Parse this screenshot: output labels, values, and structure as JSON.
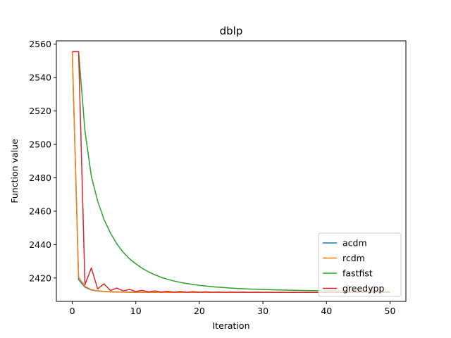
{
  "chart_data": {
    "type": "line",
    "title": "dblp",
    "xlabel": "Iteration",
    "ylabel": "Function value",
    "xlim": [
      -2.5,
      52.5
    ],
    "ylim": [
      2406,
      2562
    ],
    "xticks": [
      0,
      10,
      20,
      30,
      40,
      50
    ],
    "yticks": [
      2420,
      2440,
      2460,
      2480,
      2500,
      2520,
      2540,
      2560
    ],
    "grid": false,
    "legend_position": "lower right",
    "series": [
      {
        "name": "acdm",
        "color": "#1f77b4",
        "x": [
          0,
          1,
          2,
          3,
          4,
          5,
          6,
          7,
          8,
          9,
          10,
          11,
          12,
          13,
          14,
          15,
          16,
          17,
          18,
          19,
          20,
          21,
          22,
          23,
          24,
          25,
          26,
          27,
          28,
          29,
          30,
          31,
          32,
          33,
          34,
          35,
          36,
          37,
          38,
          39,
          40,
          41,
          42,
          43,
          44,
          45,
          46,
          47,
          48,
          49,
          50
        ],
        "y": [
          2555.5,
          2419.0,
          2414.5,
          2412.8,
          2412.2,
          2411.9,
          2411.7,
          2411.6,
          2411.55,
          2411.5,
          2411.5,
          2411.45,
          2411.45,
          2411.4,
          2411.4,
          2411.4,
          2411.4,
          2411.4,
          2411.4,
          2411.4,
          2411.4,
          2411.4,
          2411.4,
          2411.4,
          2411.4,
          2411.4,
          2411.4,
          2411.4,
          2411.4,
          2411.4,
          2411.4,
          2411.4,
          2411.4,
          2411.4,
          2411.4,
          2411.4,
          2411.4,
          2411.4,
          2411.4,
          2411.4,
          2411.4,
          2411.4,
          2411.4,
          2411.4,
          2411.4,
          2411.4,
          2411.4,
          2411.4,
          2411.4,
          2411.4,
          2411.4
        ]
      },
      {
        "name": "rcdm",
        "color": "#ff7f0e",
        "x": [
          0,
          1,
          2,
          3,
          4,
          5,
          6,
          7,
          8,
          9,
          10,
          11,
          12,
          13,
          14,
          15,
          16,
          17,
          18,
          19,
          20,
          21,
          22,
          23,
          24,
          25,
          26,
          27,
          28,
          29,
          30,
          31,
          32,
          33,
          34,
          35,
          36,
          37,
          38,
          39,
          40,
          41,
          42,
          43,
          44,
          45,
          46,
          47,
          48,
          49,
          50
        ],
        "y": [
          2555.5,
          2420.5,
          2415.0,
          2413.0,
          2412.3,
          2412.0,
          2411.8,
          2411.7,
          2411.6,
          2411.55,
          2411.5,
          2411.5,
          2411.45,
          2411.45,
          2411.4,
          2411.4,
          2411.4,
          2411.4,
          2411.4,
          2411.4,
          2411.4,
          2411.4,
          2411.4,
          2411.4,
          2411.4,
          2411.4,
          2411.4,
          2411.4,
          2411.4,
          2411.4,
          2411.4,
          2411.4,
          2411.4,
          2411.4,
          2411.4,
          2411.4,
          2411.4,
          2411.4,
          2411.4,
          2411.4,
          2411.4,
          2411.4,
          2411.4,
          2411.4,
          2411.4,
          2411.4,
          2411.4,
          2411.4,
          2411.4,
          2411.4,
          2411.4
        ]
      },
      {
        "name": "fastfist",
        "color": "#2ca02c",
        "x": [
          0,
          1,
          2,
          3,
          4,
          5,
          6,
          7,
          8,
          9,
          10,
          11,
          12,
          13,
          14,
          15,
          16,
          17,
          18,
          19,
          20,
          21,
          22,
          23,
          24,
          25,
          26,
          27,
          28,
          29,
          30,
          31,
          32,
          33,
          34,
          35,
          36,
          37,
          38,
          39,
          40,
          41,
          42,
          43,
          44,
          45,
          46,
          47,
          48,
          49,
          50
        ],
        "y": [
          2555.5,
          2555.5,
          2508,
          2481,
          2466,
          2455,
          2447,
          2440.5,
          2435.5,
          2431.5,
          2428.5,
          2425.8,
          2423.7,
          2421.9,
          2420.4,
          2419.2,
          2418.2,
          2417.4,
          2416.7,
          2416.1,
          2415.6,
          2415.2,
          2414.8,
          2414.5,
          2414.2,
          2413.95,
          2413.75,
          2413.55,
          2413.4,
          2413.25,
          2413.1,
          2413.0,
          2412.9,
          2412.8,
          2412.7,
          2412.62,
          2412.55,
          2412.48,
          2412.42,
          2412.36,
          2412.31,
          2412.26,
          2412.22,
          2412.18,
          2412.14,
          2412.1,
          2412.07,
          2412.04,
          2412.01,
          2411.98,
          2411.95
        ]
      },
      {
        "name": "greedypp",
        "color": "#d62728",
        "x": [
          0,
          1,
          2,
          3,
          4,
          5,
          6,
          7,
          8,
          9,
          10,
          11,
          12,
          13,
          14,
          15,
          16,
          17,
          18,
          19,
          20,
          21,
          22,
          23,
          24,
          25,
          26,
          27,
          28,
          29,
          30,
          31,
          32,
          33,
          34,
          35,
          36,
          37,
          38,
          39,
          40,
          41,
          42,
          43,
          44,
          45,
          46,
          47,
          48,
          49,
          50
        ],
        "y": [
          2555.5,
          2555.5,
          2416,
          2426,
          2413.5,
          2416.5,
          2412.5,
          2414,
          2412.3,
          2413.2,
          2411.9,
          2412.6,
          2411.7,
          2412.3,
          2411.6,
          2412.0,
          2411.55,
          2411.9,
          2411.5,
          2411.8,
          2411.5,
          2411.7,
          2411.5,
          2411.65,
          2411.45,
          2411.6,
          2411.45,
          2411.55,
          2411.45,
          2411.5,
          2411.45,
          2411.5,
          2411.4,
          2411.5,
          2411.4,
          2411.45,
          2411.4,
          2411.45,
          2411.4,
          2411.45,
          2411.4,
          2411.45,
          2411.4,
          2411.4,
          2411.4,
          2411.4,
          2411.4,
          2411.4,
          2411.4,
          2411.4,
          2411.4
        ]
      }
    ]
  }
}
